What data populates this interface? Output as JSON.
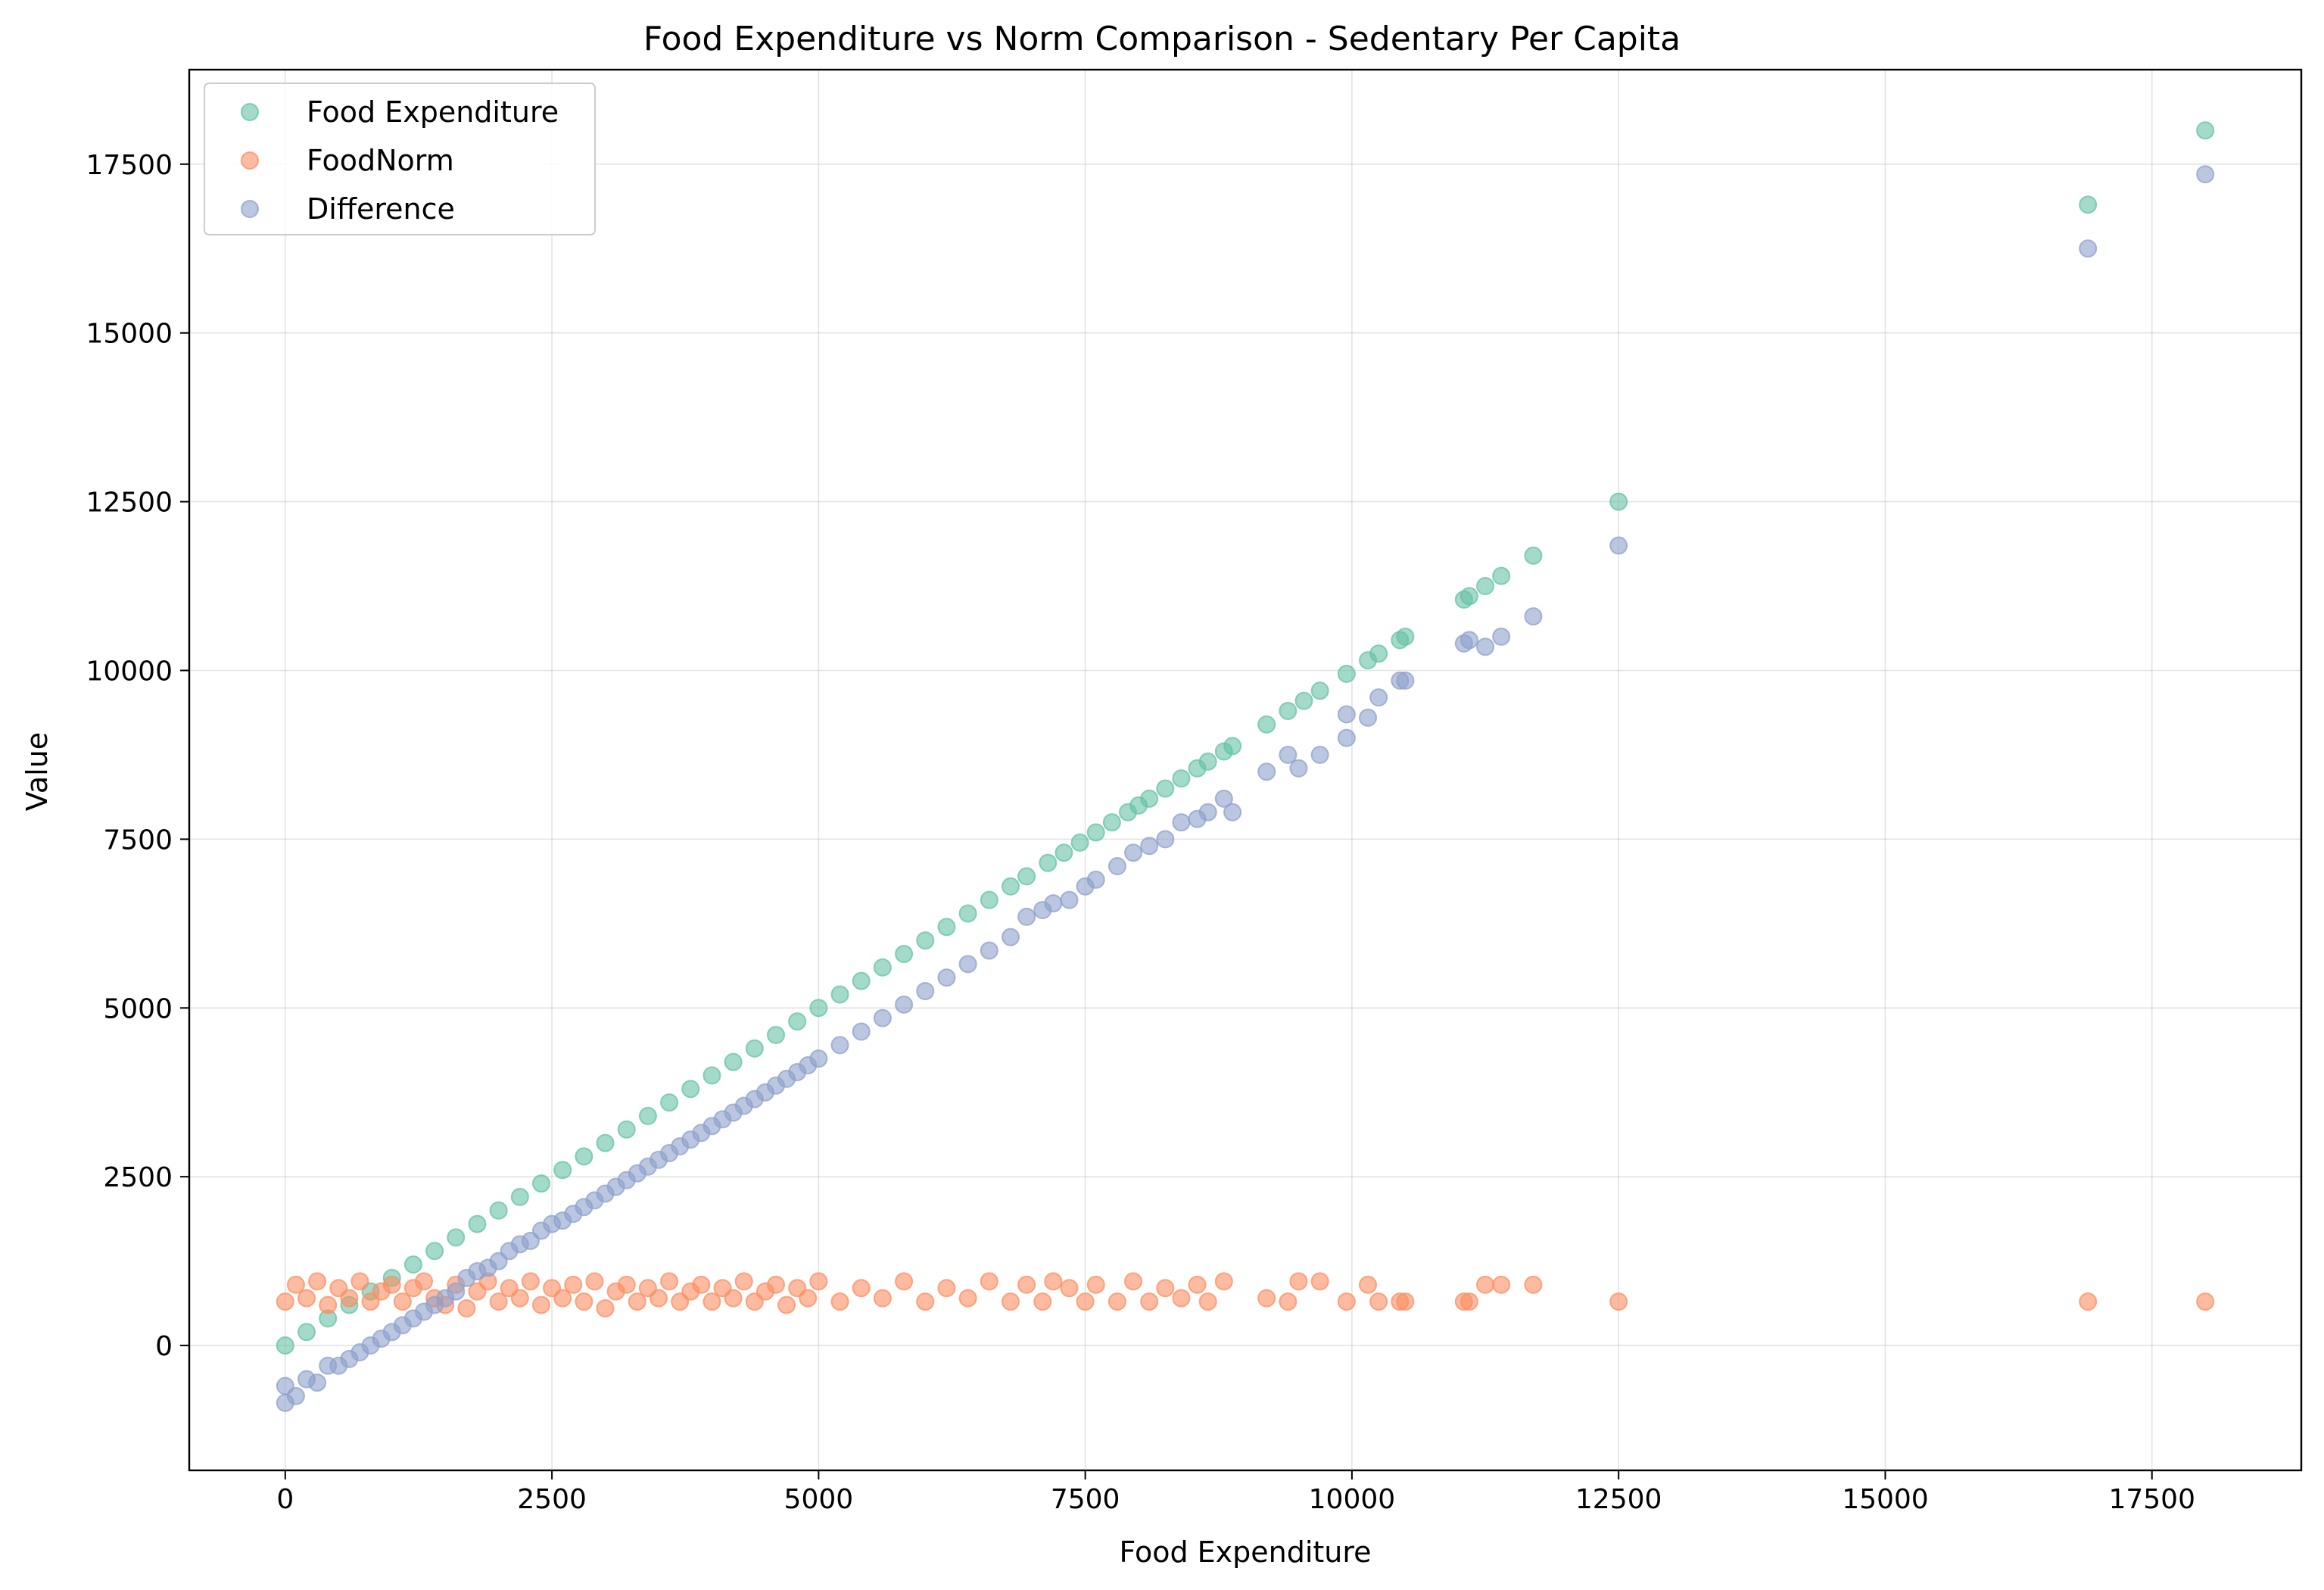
{
  "chart_data": {
    "type": "scatter",
    "title": "Food Expenditure vs Norm Comparison - Sedentary Per Capita",
    "xlabel": "Food Expenditure",
    "ylabel": "Value",
    "xlim": [
      -900,
      18900
    ],
    "ylim": [
      -1850,
      18900
    ],
    "xticks": [
      0,
      2500,
      5000,
      7500,
      10000,
      12500,
      15000,
      17500
    ],
    "xtick_labels": [
      "0",
      "2500",
      "5000",
      "7500",
      "10000",
      "12500",
      "15000",
      "17500"
    ],
    "yticks": [
      0,
      2500,
      5000,
      7500,
      10000,
      12500,
      15000,
      17500
    ],
    "ytick_labels": [
      "0",
      "2500",
      "5000",
      "7500",
      "10000",
      "12500",
      "15000",
      "17500"
    ],
    "grid": true,
    "legend_position": "top-left",
    "series": [
      {
        "name": "Food Expenditure",
        "color": "#66c2a5",
        "points": [
          [
            0,
            0
          ],
          [
            200,
            200
          ],
          [
            400,
            400
          ],
          [
            600,
            600
          ],
          [
            800,
            800
          ],
          [
            1000,
            1000
          ],
          [
            1200,
            1200
          ],
          [
            1400,
            1400
          ],
          [
            1600,
            1600
          ],
          [
            1800,
            1800
          ],
          [
            2000,
            2000
          ],
          [
            2200,
            2200
          ],
          [
            2400,
            2400
          ],
          [
            2600,
            2600
          ],
          [
            2800,
            2800
          ],
          [
            3000,
            3000
          ],
          [
            3200,
            3200
          ],
          [
            3400,
            3400
          ],
          [
            3600,
            3600
          ],
          [
            3800,
            3800
          ],
          [
            4000,
            4000
          ],
          [
            4200,
            4200
          ],
          [
            4400,
            4400
          ],
          [
            4600,
            4600
          ],
          [
            4800,
            4800
          ],
          [
            5000,
            5000
          ],
          [
            5200,
            5200
          ],
          [
            5400,
            5400
          ],
          [
            5600,
            5600
          ],
          [
            5800,
            5800
          ],
          [
            6000,
            6000
          ],
          [
            6200,
            6200
          ],
          [
            6400,
            6400
          ],
          [
            6600,
            6600
          ],
          [
            6800,
            6800
          ],
          [
            6950,
            6950
          ],
          [
            7150,
            7150
          ],
          [
            7300,
            7300
          ],
          [
            7450,
            7450
          ],
          [
            7600,
            7600
          ],
          [
            7750,
            7750
          ],
          [
            7900,
            7900
          ],
          [
            8000,
            8000
          ],
          [
            8100,
            8100
          ],
          [
            8250,
            8250
          ],
          [
            8400,
            8400
          ],
          [
            8550,
            8550
          ],
          [
            8650,
            8650
          ],
          [
            8800,
            8800
          ],
          [
            8880,
            8880
          ],
          [
            9200,
            9200
          ],
          [
            9400,
            9400
          ],
          [
            9550,
            9550
          ],
          [
            9700,
            9700
          ],
          [
            9950,
            9950
          ],
          [
            10150,
            10150
          ],
          [
            10250,
            10250
          ],
          [
            10450,
            10450
          ],
          [
            10500,
            10500
          ],
          [
            11050,
            11050
          ],
          [
            11100,
            11100
          ],
          [
            11250,
            11250
          ],
          [
            11400,
            11400
          ],
          [
            11700,
            11700
          ],
          [
            12500,
            12500
          ],
          [
            16900,
            16900
          ],
          [
            18000,
            18000
          ]
        ]
      },
      {
        "name": "FoodNorm",
        "color": "#fc8d62",
        "points": [
          [
            0,
            650
          ],
          [
            100,
            900
          ],
          [
            200,
            700
          ],
          [
            300,
            950
          ],
          [
            400,
            600
          ],
          [
            500,
            850
          ],
          [
            600,
            700
          ],
          [
            700,
            950
          ],
          [
            800,
            650
          ],
          [
            900,
            800
          ],
          [
            1000,
            900
          ],
          [
            1100,
            650
          ],
          [
            1200,
            850
          ],
          [
            1300,
            950
          ],
          [
            1400,
            700
          ],
          [
            1500,
            600
          ],
          [
            1600,
            900
          ],
          [
            1700,
            550
          ],
          [
            1800,
            800
          ],
          [
            1900,
            950
          ],
          [
            2000,
            650
          ],
          [
            2100,
            850
          ],
          [
            2200,
            700
          ],
          [
            2300,
            950
          ],
          [
            2400,
            600
          ],
          [
            2500,
            850
          ],
          [
            2600,
            700
          ],
          [
            2700,
            900
          ],
          [
            2800,
            650
          ],
          [
            2900,
            950
          ],
          [
            3000,
            550
          ],
          [
            3100,
            800
          ],
          [
            3200,
            900
          ],
          [
            3300,
            650
          ],
          [
            3400,
            850
          ],
          [
            3500,
            700
          ],
          [
            3600,
            950
          ],
          [
            3700,
            650
          ],
          [
            3800,
            800
          ],
          [
            3900,
            900
          ],
          [
            4000,
            650
          ],
          [
            4100,
            850
          ],
          [
            4200,
            700
          ],
          [
            4300,
            950
          ],
          [
            4400,
            650
          ],
          [
            4500,
            800
          ],
          [
            4600,
            900
          ],
          [
            4700,
            600
          ],
          [
            4800,
            850
          ],
          [
            4900,
            700
          ],
          [
            5000,
            950
          ],
          [
            5200,
            650
          ],
          [
            5400,
            850
          ],
          [
            5600,
            700
          ],
          [
            5800,
            950
          ],
          [
            6000,
            650
          ],
          [
            6200,
            850
          ],
          [
            6400,
            700
          ],
          [
            6600,
            950
          ],
          [
            6800,
            650
          ],
          [
            6950,
            900
          ],
          [
            7100,
            650
          ],
          [
            7200,
            950
          ],
          [
            7350,
            850
          ],
          [
            7500,
            650
          ],
          [
            7600,
            900
          ],
          [
            7800,
            650
          ],
          [
            7950,
            950
          ],
          [
            8100,
            650
          ],
          [
            8250,
            850
          ],
          [
            8400,
            700
          ],
          [
            8550,
            900
          ],
          [
            8650,
            650
          ],
          [
            8800,
            950
          ],
          [
            9200,
            700
          ],
          [
            9400,
            650
          ],
          [
            9500,
            950
          ],
          [
            9700,
            950
          ],
          [
            9950,
            650
          ],
          [
            10150,
            900
          ],
          [
            10250,
            650
          ],
          [
            10450,
            650
          ],
          [
            10500,
            650
          ],
          [
            11050,
            650
          ],
          [
            11100,
            650
          ],
          [
            11250,
            900
          ],
          [
            11400,
            900
          ],
          [
            11700,
            900
          ],
          [
            12500,
            650
          ],
          [
            16900,
            650
          ],
          [
            18000,
            650
          ]
        ]
      },
      {
        "name": "Difference",
        "color": "#8da0cb",
        "points": [
          [
            0,
            -850
          ],
          [
            0,
            -600
          ],
          [
            100,
            -750
          ],
          [
            200,
            -500
          ],
          [
            300,
            -550
          ],
          [
            400,
            -300
          ],
          [
            500,
            -300
          ],
          [
            600,
            -200
          ],
          [
            700,
            -100
          ],
          [
            800,
            0
          ],
          [
            900,
            100
          ],
          [
            1000,
            200
          ],
          [
            1100,
            300
          ],
          [
            1200,
            400
          ],
          [
            1300,
            500
          ],
          [
            1400,
            600
          ],
          [
            1500,
            700
          ],
          [
            1600,
            800
          ],
          [
            1700,
            1000
          ],
          [
            1800,
            1100
          ],
          [
            1900,
            1150
          ],
          [
            2000,
            1250
          ],
          [
            2100,
            1400
          ],
          [
            2200,
            1500
          ],
          [
            2300,
            1550
          ],
          [
            2400,
            1700
          ],
          [
            2500,
            1800
          ],
          [
            2600,
            1850
          ],
          [
            2700,
            1950
          ],
          [
            2800,
            2050
          ],
          [
            2900,
            2150
          ],
          [
            3000,
            2250
          ],
          [
            3100,
            2350
          ],
          [
            3200,
            2450
          ],
          [
            3300,
            2550
          ],
          [
            3400,
            2650
          ],
          [
            3500,
            2750
          ],
          [
            3600,
            2850
          ],
          [
            3700,
            2950
          ],
          [
            3800,
            3050
          ],
          [
            3900,
            3150
          ],
          [
            4000,
            3250
          ],
          [
            4100,
            3350
          ],
          [
            4200,
            3450
          ],
          [
            4300,
            3550
          ],
          [
            4400,
            3650
          ],
          [
            4500,
            3750
          ],
          [
            4600,
            3850
          ],
          [
            4700,
            3950
          ],
          [
            4800,
            4050
          ],
          [
            4900,
            4150
          ],
          [
            5000,
            4250
          ],
          [
            5200,
            4450
          ],
          [
            5400,
            4650
          ],
          [
            5600,
            4850
          ],
          [
            5800,
            5050
          ],
          [
            6000,
            5250
          ],
          [
            6200,
            5450
          ],
          [
            6400,
            5650
          ],
          [
            6600,
            5850
          ],
          [
            6800,
            6050
          ],
          [
            6950,
            6350
          ],
          [
            7100,
            6450
          ],
          [
            7200,
            6550
          ],
          [
            7350,
            6600
          ],
          [
            7500,
            6800
          ],
          [
            7600,
            6900
          ],
          [
            7800,
            7100
          ],
          [
            7950,
            7300
          ],
          [
            8100,
            7400
          ],
          [
            8250,
            7500
          ],
          [
            8400,
            7750
          ],
          [
            8550,
            7800
          ],
          [
            8650,
            7900
          ],
          [
            8800,
            8100
          ],
          [
            8880,
            7900
          ],
          [
            9200,
            8500
          ],
          [
            9400,
            8750
          ],
          [
            9500,
            8550
          ],
          [
            9700,
            8750
          ],
          [
            9950,
            9000
          ],
          [
            9950,
            9350
          ],
          [
            10150,
            9300
          ],
          [
            10250,
            9600
          ],
          [
            10450,
            9850
          ],
          [
            10500,
            9850
          ],
          [
            11050,
            10400
          ],
          [
            11100,
            10450
          ],
          [
            11250,
            10350
          ],
          [
            11400,
            10500
          ],
          [
            11700,
            10800
          ],
          [
            12500,
            11850
          ],
          [
            16900,
            16250
          ],
          [
            18000,
            17350
          ]
        ]
      }
    ]
  }
}
